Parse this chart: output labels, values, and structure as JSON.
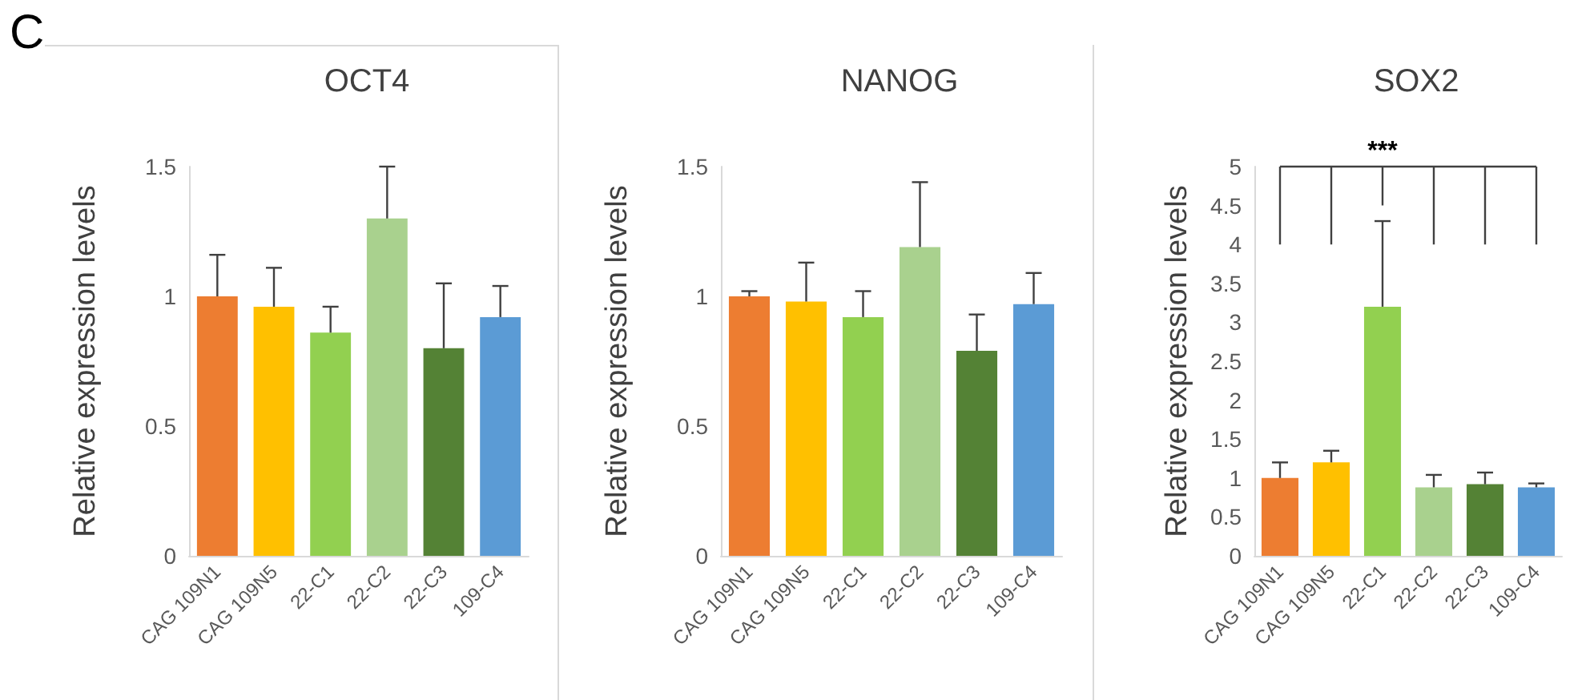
{
  "chart_data": [
    {
      "type": "bar",
      "title": "OCT4",
      "ylabel": "Relative expression levels",
      "annotations": [
        "C"
      ],
      "categories": [
        "CAG 109N1",
        "CAG 109N5",
        "22-C1",
        "22-C2",
        "22-C3",
        "109-C4"
      ],
      "values": [
        1.0,
        0.96,
        0.86,
        1.3,
        0.8,
        0.92
      ],
      "colors": [
        "#ed7d31",
        "#ffc000",
        "#92d050",
        "#a9d18e",
        "#548235",
        "#5b9bd5"
      ],
      "errors": [
        [
          1.0,
          1.16
        ],
        [
          0.96,
          1.11
        ],
        [
          0.86,
          0.96
        ],
        [
          1.3,
          1.5
        ],
        [
          0.8,
          1.05
        ],
        [
          0.92,
          1.04
        ]
      ],
      "ylim": [
        0,
        1.5
      ],
      "yticks": [
        0,
        0.5,
        1,
        1.5
      ],
      "grid": false
    },
    {
      "type": "bar",
      "title": "NANOG",
      "ylabel": "Relative expression levels",
      "categories": [
        "CAG 109N1",
        "CAG 109N5",
        "22-C1",
        "22-C2",
        "22-C3",
        "109-C4"
      ],
      "values": [
        1.0,
        0.98,
        0.92,
        1.19,
        0.79,
        0.97
      ],
      "colors": [
        "#ed7d31",
        "#ffc000",
        "#92d050",
        "#a9d18e",
        "#548235",
        "#5b9bd5"
      ],
      "errors": [
        [
          1.0,
          1.02
        ],
        [
          0.98,
          1.13
        ],
        [
          0.92,
          1.02
        ],
        [
          1.19,
          1.44
        ],
        [
          0.79,
          0.93
        ],
        [
          0.97,
          1.09
        ]
      ],
      "ylim": [
        0,
        1.5
      ],
      "yticks": [
        0,
        0.5,
        1,
        1.5
      ],
      "grid": false
    },
    {
      "type": "bar",
      "title": "SOX2",
      "ylabel": "Relative expression levels",
      "annotations": [
        {
          "text": "***",
          "x": "22-C1"
        }
      ],
      "categories": [
        "CAG 109N1",
        "CAG 109N5",
        "22-C1",
        "22-C2",
        "22-C3",
        "109-C4"
      ],
      "values": [
        1.0,
        1.2,
        3.2,
        0.88,
        0.92,
        0.88
      ],
      "colors": [
        "#ed7d31",
        "#ffc000",
        "#92d050",
        "#a9d18e",
        "#548235",
        "#5b9bd5"
      ],
      "errors": [
        [
          1.0,
          1.2
        ],
        [
          1.2,
          1.35
        ],
        [
          3.2,
          4.3
        ],
        [
          0.88,
          1.04
        ],
        [
          0.92,
          1.07
        ],
        [
          0.88,
          0.93
        ]
      ],
      "ylim": [
        0,
        5
      ],
      "yticks": [
        0,
        0.5,
        1,
        1.5,
        2,
        2.5,
        3,
        3.5,
        4,
        4.5,
        5
      ],
      "grid": false
    }
  ]
}
